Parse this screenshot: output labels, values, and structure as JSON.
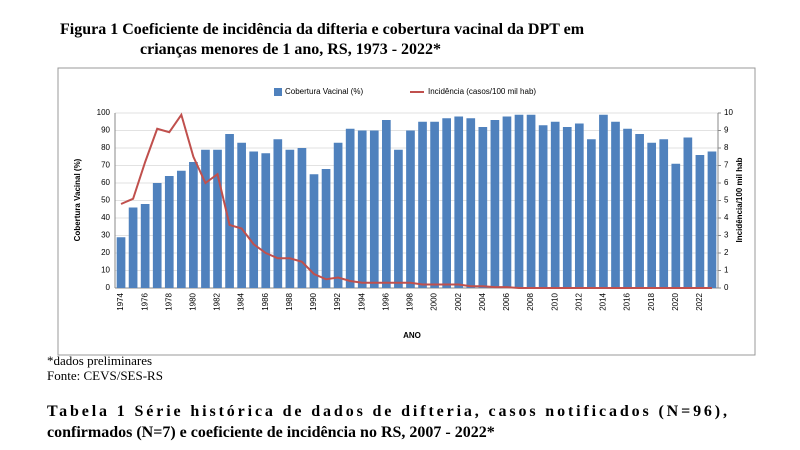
{
  "document": {
    "figure_title": [
      "Figura 1  Coeficiente de incidência da difteria e cobertura vacinal da DPT em",
      "crianças menores de 1 ano, RS, 1973 - 2022*"
    ],
    "notes": [
      "*dados preliminares",
      "Fonte: CEVS/SES-RS"
    ],
    "table_title": [
      "Tabela 1   Série histórica de dados de difteria, casos notificados (N=96),",
      "confirmados (N=7) e coeficiente de incidência no RS, 2007 - 2022*"
    ]
  },
  "chart_data": {
    "type": "bar_line",
    "categories": [
      "1974",
      null,
      "1976",
      null,
      "1978",
      null,
      "1980",
      null,
      "1982",
      null,
      "1984",
      null,
      "1986",
      null,
      "1988",
      null,
      "1990",
      null,
      "1992",
      null,
      "1994",
      null,
      "1996",
      null,
      "1998",
      null,
      "2000",
      null,
      "2002",
      null,
      "2004",
      null,
      "2006",
      null,
      "2008",
      null,
      "2010",
      null,
      "2012",
      null,
      "2014",
      null,
      "2016",
      null,
      "2018",
      null,
      "2020",
      null,
      "2022",
      null
    ],
    "series": [
      {
        "name": "Cobertura Vacinal (%)",
        "color": "#4f81bd",
        "type": "bar",
        "axis": "y",
        "values": [
          29,
          46,
          48,
          60,
          64,
          67,
          72,
          79,
          79,
          88,
          83,
          78,
          77,
          85,
          79,
          80,
          65,
          68,
          83,
          91,
          90,
          90,
          96,
          79,
          90,
          95,
          95,
          97,
          98,
          97,
          92,
          96,
          98,
          99,
          99,
          93,
          95,
          92,
          94,
          85,
          99,
          95,
          91,
          88,
          83,
          85,
          71,
          86,
          76,
          78
        ]
      },
      {
        "name": "Incidência (casos/100 mil hab)",
        "color": "#c0504d",
        "type": "line",
        "axis": "y2",
        "values": [
          4.8,
          5.1,
          7.2,
          9.1,
          8.9,
          9.9,
          7.5,
          6.0,
          6.5,
          3.6,
          3.4,
          2.5,
          2.0,
          1.7,
          1.7,
          1.5,
          0.8,
          0.5,
          0.6,
          0.4,
          0.3,
          0.3,
          0.3,
          0.3,
          0.3,
          0.2,
          0.2,
          0.2,
          0.2,
          0.1,
          0.1,
          0.05,
          0.05,
          0,
          0,
          0,
          0,
          0,
          0,
          0,
          0,
          0,
          0,
          0,
          0,
          0,
          0,
          0,
          0,
          0
        ]
      }
    ],
    "x_label": "ANO",
    "y_label": "Cobertura Vacinal (%)",
    "y2_label": "Incidência/100 mil hab",
    "ylim": [
      0,
      100
    ],
    "yticks": [
      0,
      10,
      20,
      30,
      40,
      50,
      60,
      70,
      80,
      90,
      100
    ],
    "y2lim": [
      0,
      10
    ],
    "y2ticks": [
      0,
      1,
      2,
      3,
      4,
      5,
      6,
      7,
      8,
      9,
      10
    ],
    "grid": true
  }
}
